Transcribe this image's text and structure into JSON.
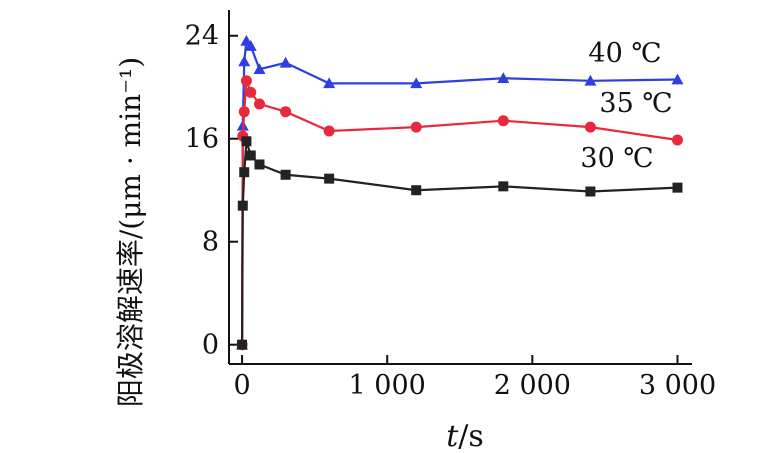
{
  "chart_data": {
    "type": "line",
    "title": "",
    "xlabel_var": "t",
    "xlabel_unit": "/s",
    "ylabel": "阳极溶解速率/(μm · min⁻¹)",
    "xlim": [
      -90,
      3100
    ],
    "ylim": [
      -1.5,
      26
    ],
    "xticks": [
      0,
      1000,
      2000,
      3000
    ],
    "xtick_labels": [
      "0",
      "1 000",
      "2 000",
      "3 000"
    ],
    "yticks": [
      0,
      8,
      16,
      24
    ],
    "ytick_labels": [
      "0",
      "8",
      "16",
      "24"
    ],
    "grid": false,
    "series": [
      {
        "name": "40 ℃",
        "color": "#2e3fe0",
        "marker": "triangle",
        "x": [
          0,
          5,
          15,
          30,
          60,
          120,
          300,
          600,
          1200,
          1800,
          2400,
          3000
        ],
        "y": [
          0,
          17.0,
          22.0,
          23.6,
          23.2,
          21.4,
          21.9,
          20.3,
          20.3,
          20.7,
          20.5,
          20.6
        ]
      },
      {
        "name": "35 ℃",
        "color": "#e8283c",
        "marker": "circle",
        "x": [
          0,
          5,
          15,
          30,
          60,
          120,
          300,
          600,
          1200,
          1800,
          2400,
          3000
        ],
        "y": [
          0,
          16.2,
          18.1,
          20.5,
          19.6,
          18.7,
          18.1,
          16.6,
          16.9,
          17.4,
          16.9,
          15.9
        ]
      },
      {
        "name": "30 ℃",
        "color": "#222222",
        "marker": "square",
        "x": [
          0,
          5,
          15,
          30,
          60,
          120,
          300,
          600,
          1200,
          1800,
          2400,
          3000
        ],
        "y": [
          0,
          10.8,
          13.4,
          15.8,
          14.7,
          14.0,
          13.2,
          12.9,
          12.0,
          12.3,
          11.9,
          12.2
        ]
      }
    ]
  }
}
